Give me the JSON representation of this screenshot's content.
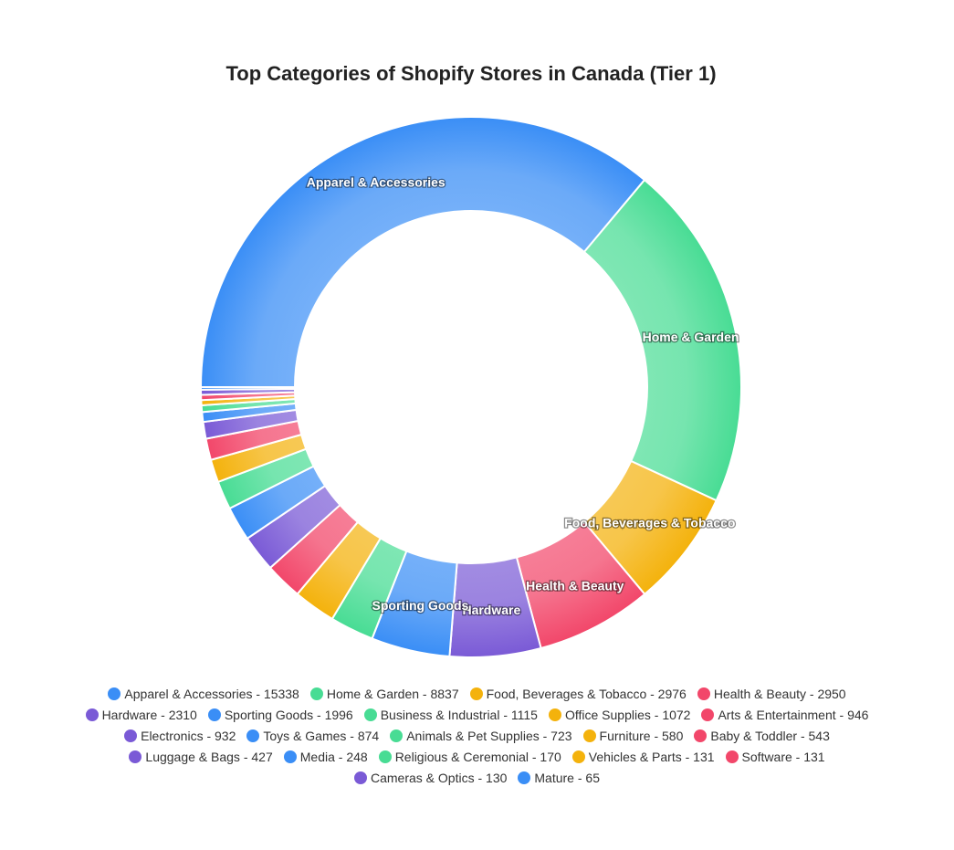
{
  "chart_data": {
    "type": "donut",
    "title": "Top Categories of Shopify Stores in Canada (Tier 1)",
    "categories": [
      "Apparel & Accessories",
      "Home & Garden",
      "Food, Beverages & Tobacco",
      "Health & Beauty",
      "Hardware",
      "Sporting Goods",
      "Business & Industrial",
      "Office Supplies",
      "Arts & Entertainment",
      "Electronics",
      "Toys & Games",
      "Animals & Pet Supplies",
      "Furniture",
      "Baby & Toddler",
      "Luggage & Bags",
      "Media",
      "Religious & Ceremonial",
      "Vehicles & Parts",
      "Software",
      "Cameras & Optics",
      "Mature"
    ],
    "values": [
      15338,
      8837,
      2976,
      2950,
      2310,
      1996,
      1115,
      1072,
      946,
      932,
      874,
      723,
      580,
      543,
      427,
      248,
      170,
      131,
      131,
      130,
      65
    ],
    "value_labels": [
      "Apparel & Accessories - 15338",
      "Home & Garden - 8837",
      "Food, Beverages & Tobacco - 2976",
      "Health & Beauty - 2950",
      "Hardware - 2310",
      "Sporting Goods - 1996",
      "Business & Industrial - 1115",
      "Office Supplies - 1072",
      "Arts & Entertainment - 946",
      "Electronics - 932",
      "Toys & Games - 874",
      "Animals & Pet Supplies - 723",
      "Furniture - 580",
      "Baby & Toddler - 543",
      "Luggage & Bags - 427",
      "Media - 248",
      "Religious & Ceremonial - 170",
      "Vehicles & Parts - 131",
      "Software - 131",
      "Cameras & Optics - 130",
      "Mature - 65"
    ],
    "colors": [
      "#3a8ef6",
      "#48dc94",
      "#f4b20c",
      "#f2476a",
      "#7a5ad6"
    ]
  }
}
